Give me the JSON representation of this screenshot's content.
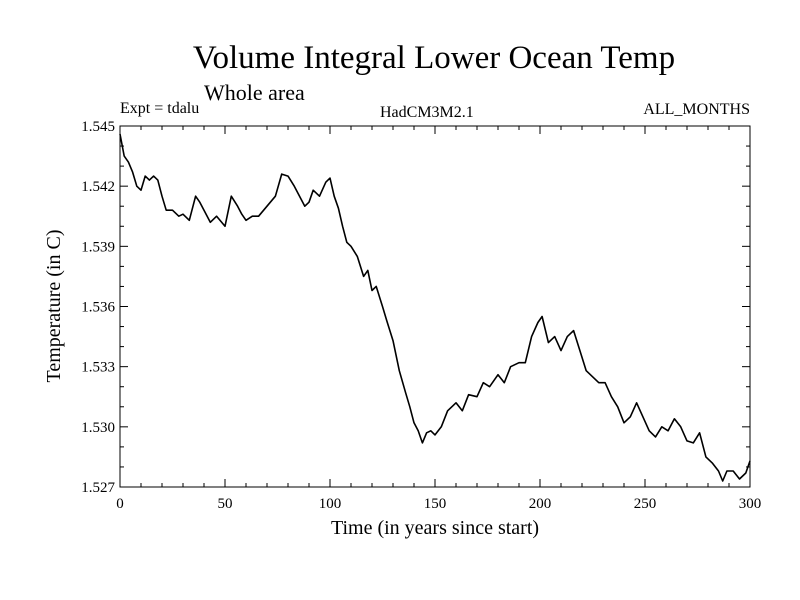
{
  "chart_data": {
    "type": "line",
    "title": "Volume Integral Lower Ocean Temp",
    "subtitle": "Whole area",
    "experiment": "Expt = tdalu",
    "model": "HadCM3M2.1",
    "period": "ALL_MONTHS",
    "xlabel": "Time (in years since start)",
    "ylabel": "Temperature (in C)",
    "xlim": [
      0,
      300
    ],
    "ylim": [
      1.527,
      1.545
    ],
    "xticks": [
      "0",
      "50",
      "100",
      "150",
      "200",
      "250",
      "300"
    ],
    "yticks": [
      "1.527",
      "1.530",
      "1.533",
      "1.536",
      "1.539",
      "1.542",
      "1.545"
    ],
    "series": [
      {
        "name": "Temperature",
        "x": [
          0,
          2,
          4,
          6,
          8,
          10,
          12,
          14,
          16,
          18,
          20,
          22,
          25,
          28,
          30,
          33,
          36,
          38,
          40,
          43,
          46,
          50,
          53,
          56,
          58,
          60,
          63,
          66,
          70,
          74,
          77,
          80,
          83,
          86,
          88,
          90,
          92,
          95,
          98,
          100,
          102,
          104,
          106,
          108,
          110,
          113,
          116,
          118,
          120,
          122,
          125,
          127,
          130,
          133,
          136,
          138,
          140,
          142,
          144,
          146,
          148,
          150,
          153,
          156,
          160,
          163,
          166,
          170,
          173,
          176,
          180,
          183,
          186,
          190,
          193,
          196,
          199,
          201,
          204,
          207,
          210,
          213,
          216,
          219,
          222,
          225,
          228,
          231,
          234,
          237,
          240,
          243,
          246,
          249,
          252,
          255,
          258,
          261,
          264,
          267,
          270,
          273,
          276,
          279,
          282,
          285,
          287,
          289,
          292,
          295,
          298,
          300
        ],
        "values": [
          1.5446,
          1.5435,
          1.5432,
          1.5427,
          1.542,
          1.5418,
          1.5425,
          1.5423,
          1.5425,
          1.5423,
          1.5415,
          1.5408,
          1.5408,
          1.5405,
          1.5406,
          1.5403,
          1.5415,
          1.5412,
          1.5408,
          1.5402,
          1.5405,
          1.54,
          1.5415,
          1.541,
          1.5406,
          1.5403,
          1.5405,
          1.5405,
          1.541,
          1.5415,
          1.5426,
          1.5425,
          1.542,
          1.5414,
          1.541,
          1.5412,
          1.5418,
          1.5415,
          1.5422,
          1.5424,
          1.5415,
          1.5409,
          1.54,
          1.5392,
          1.539,
          1.5385,
          1.5375,
          1.5378,
          1.5368,
          1.537,
          1.536,
          1.5353,
          1.5343,
          1.5328,
          1.5317,
          1.531,
          1.5302,
          1.5298,
          1.5292,
          1.5297,
          1.5298,
          1.5296,
          1.53,
          1.5308,
          1.5312,
          1.5308,
          1.5316,
          1.5315,
          1.5322,
          1.532,
          1.5326,
          1.5322,
          1.533,
          1.5332,
          1.5332,
          1.5345,
          1.5352,
          1.5355,
          1.5342,
          1.5345,
          1.5338,
          1.5345,
          1.5348,
          1.5338,
          1.5328,
          1.5325,
          1.5322,
          1.5322,
          1.5315,
          1.531,
          1.5302,
          1.5305,
          1.5312,
          1.5305,
          1.5298,
          1.5295,
          1.53,
          1.5298,
          1.5304,
          1.53,
          1.5293,
          1.5292,
          1.5297,
          1.5285,
          1.5282,
          1.5278,
          1.5273,
          1.5278,
          1.5278,
          1.5274,
          1.5277,
          1.5283
        ]
      }
    ]
  }
}
